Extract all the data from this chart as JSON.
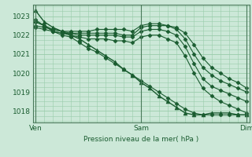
{
  "background_color": "#cce8d8",
  "plot_bg_color": "#cce8d8",
  "grid_color": "#99ccaa",
  "line_color": "#1a5c30",
  "text_color": "#1a5c30",
  "xlabel": "Pression niveau de la mer( hPa )",
  "ylim": [
    1017.4,
    1023.6
  ],
  "yticks": [
    1018,
    1019,
    1020,
    1021,
    1022,
    1023
  ],
  "xtick_labels": [
    "Ven",
    "Sam",
    "Dim"
  ],
  "xtick_positions": [
    0,
    12,
    24
  ],
  "series": [
    [
      1023.3,
      1022.7,
      1022.4,
      1022.2,
      1022.0,
      1021.8,
      1021.5,
      1021.2,
      1020.9,
      1020.6,
      1020.2,
      1019.9,
      1019.5,
      1019.2,
      1018.8,
      1018.5,
      1018.2,
      1017.9,
      1017.8,
      1017.8,
      1017.9,
      1017.9,
      1017.9,
      1017.8,
      1017.8
    ],
    [
      1022.8,
      1022.5,
      1022.2,
      1022.0,
      1021.9,
      1021.6,
      1021.3,
      1021.1,
      1020.8,
      1020.5,
      1020.2,
      1019.9,
      1019.6,
      1019.3,
      1019.0,
      1018.7,
      1018.4,
      1018.1,
      1017.9,
      1017.8,
      1017.8,
      1017.8,
      1017.8,
      1017.8,
      1017.8
    ],
    [
      1022.7,
      1022.5,
      1022.2,
      1022.1,
      1022.1,
      1022.1,
      1022.1,
      1022.1,
      1022.1,
      1022.1,
      1022.0,
      1022.0,
      1022.4,
      1022.5,
      1022.5,
      1022.5,
      1022.4,
      1022.1,
      1021.5,
      1020.8,
      1020.3,
      1020.0,
      1019.7,
      1019.5,
      1019.2
    ],
    [
      1022.7,
      1022.5,
      1022.3,
      1022.2,
      1022.2,
      1022.2,
      1022.2,
      1022.3,
      1022.3,
      1022.3,
      1022.3,
      1022.2,
      1022.5,
      1022.6,
      1022.6,
      1022.5,
      1022.3,
      1021.8,
      1021.0,
      1020.3,
      1019.9,
      1019.6,
      1019.4,
      1019.2,
      1019.0
    ],
    [
      1022.5,
      1022.4,
      1022.3,
      1022.2,
      1022.1,
      1022.0,
      1022.0,
      1022.0,
      1022.0,
      1022.0,
      1021.9,
      1021.9,
      1022.2,
      1022.3,
      1022.3,
      1022.2,
      1022.0,
      1021.4,
      1020.5,
      1019.7,
      1019.3,
      1019.1,
      1018.9,
      1018.7,
      1018.5
    ],
    [
      1022.4,
      1022.3,
      1022.2,
      1022.1,
      1022.0,
      1021.9,
      1021.8,
      1021.8,
      1021.8,
      1021.7,
      1021.7,
      1021.6,
      1021.9,
      1022.0,
      1022.0,
      1021.8,
      1021.6,
      1020.9,
      1020.0,
      1019.2,
      1018.8,
      1018.5,
      1018.3,
      1018.1,
      1017.9
    ]
  ],
  "marker_styles": [
    "^",
    "D",
    "D",
    "D",
    "D",
    "D"
  ],
  "marker_sizes": [
    3.5,
    2.5,
    2.5,
    2.5,
    2.5,
    2.5
  ],
  "linewidths": [
    1.0,
    0.8,
    0.8,
    0.8,
    0.8,
    0.8
  ],
  "figsize": [
    3.2,
    2.0
  ],
  "dpi": 100
}
